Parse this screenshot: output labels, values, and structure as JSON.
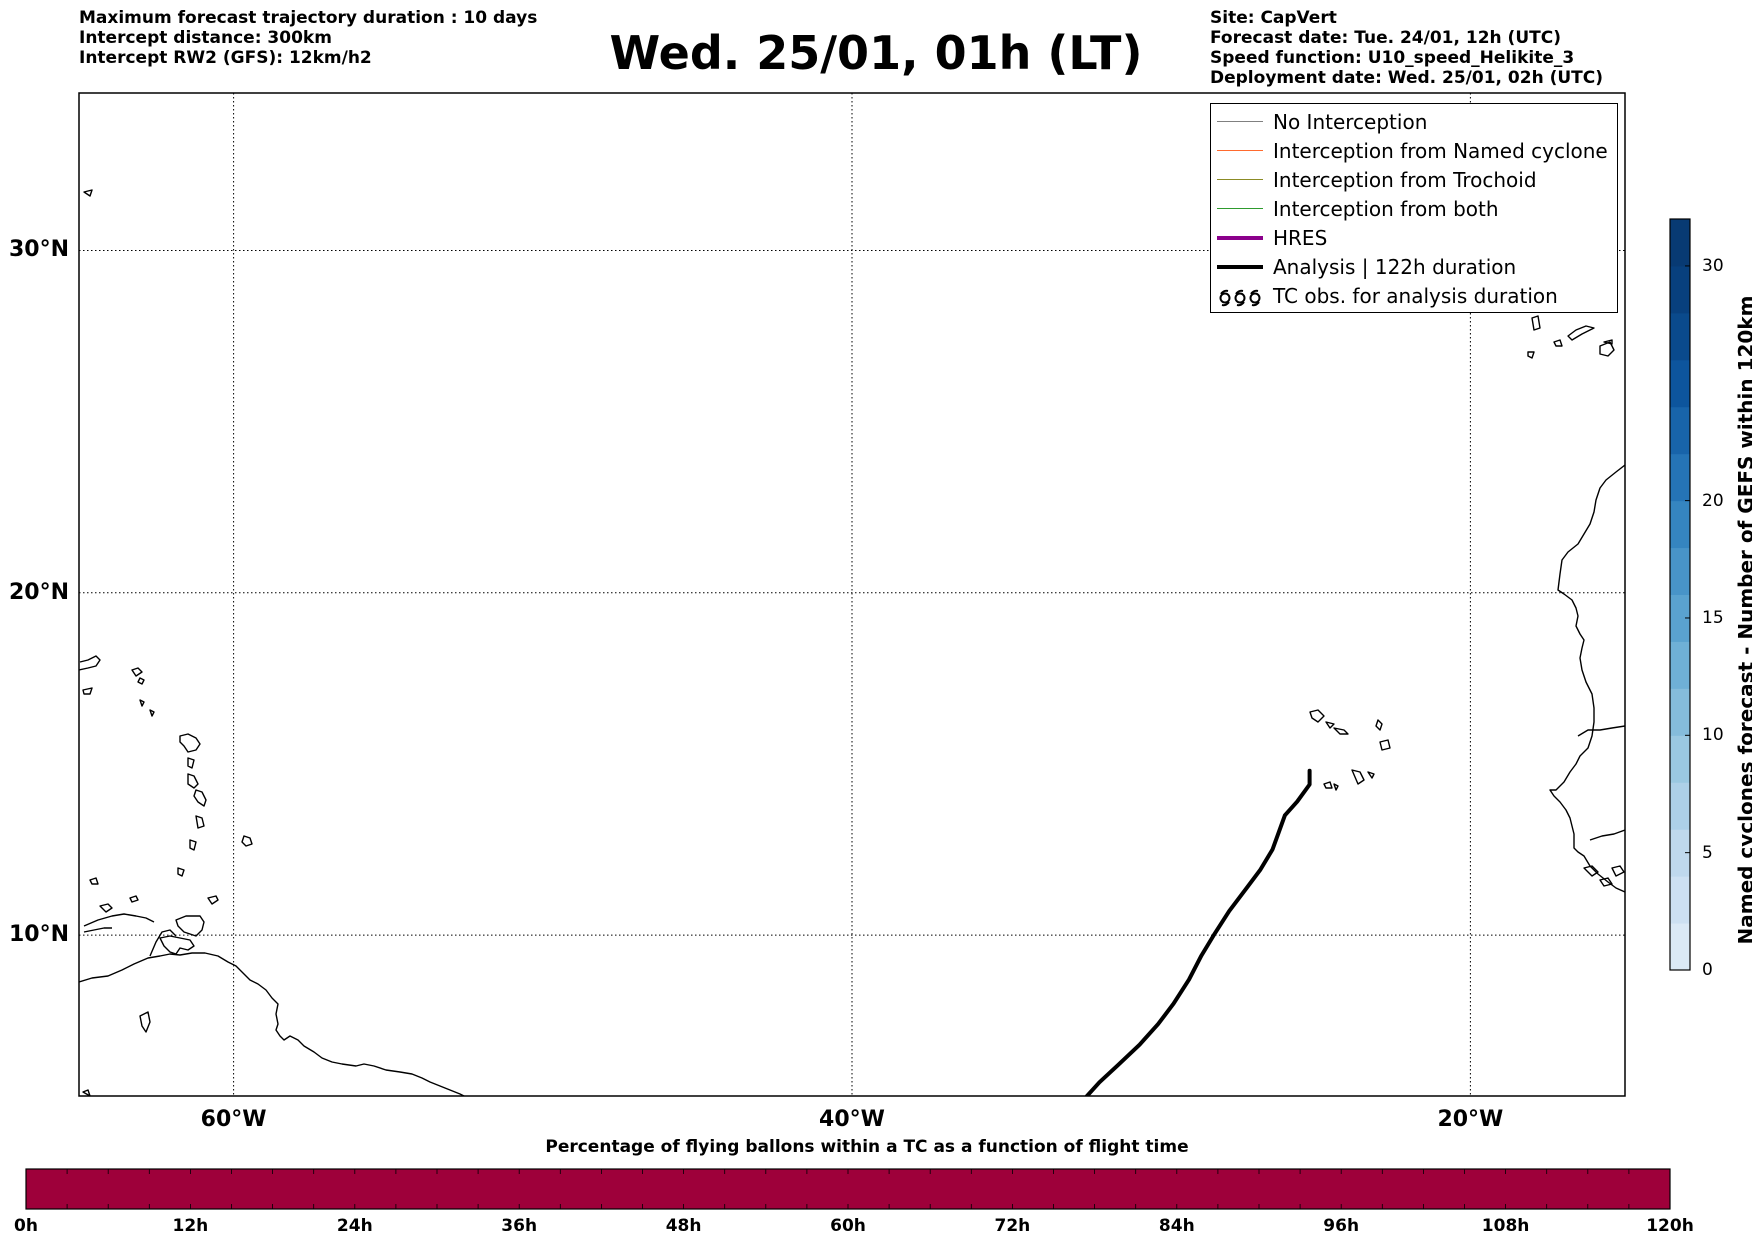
{
  "header": {
    "left_lines": [
      "Maximum forecast trajectory duration : 10 days",
      "Intercept distance: 300km",
      "Intercept RW2 (GFS):  12km/h2"
    ],
    "title": "Wed. 25/01, 01h (LT)",
    "right_lines": [
      "Site: CapVert",
      "Forecast date: Tue. 24/01, 12h (UTC)",
      "Speed function: U10_speed_Helikite_3",
      "Deployment date: Wed. 25/01, 02h (UTC)"
    ]
  },
  "map": {
    "lon_range": [
      -65,
      -15
    ],
    "lat_range": [
      5.3,
      34.6
    ],
    "lat_gridlines": [
      {
        "value": 30,
        "label": "30°N"
      },
      {
        "value": 20,
        "label": "20°N"
      },
      {
        "value": 10,
        "label": "10°N"
      }
    ],
    "lon_gridlines": [
      {
        "value": -60,
        "label": "60°W"
      },
      {
        "value": -40,
        "label": "40°W"
      },
      {
        "value": -20,
        "label": "20°W"
      }
    ],
    "analysis_track": [
      [
        -25.2,
        14.8
      ],
      [
        -25.2,
        14.4
      ],
      [
        -25.6,
        13.9
      ],
      [
        -26.0,
        13.5
      ],
      [
        -26.2,
        13.0
      ],
      [
        -26.4,
        12.5
      ],
      [
        -26.8,
        11.9
      ],
      [
        -27.3,
        11.3
      ],
      [
        -27.8,
        10.7
      ],
      [
        -28.3,
        10.0
      ],
      [
        -28.7,
        9.4
      ],
      [
        -29.1,
        8.7
      ],
      [
        -29.6,
        8.0
      ],
      [
        -30.1,
        7.4
      ],
      [
        -30.7,
        6.8
      ],
      [
        -31.4,
        6.2
      ],
      [
        -32.0,
        5.7
      ],
      [
        -32.4,
        5.3
      ]
    ],
    "coast_color": "#000000",
    "track_color": "#000000"
  },
  "legend": {
    "items": [
      {
        "label": "No Interception",
        "color": "#808080",
        "width": 1.2,
        "icon": "line"
      },
      {
        "label": "Interception from Named cyclone",
        "color": "#ff6a2e",
        "width": 1.4,
        "icon": "line"
      },
      {
        "label": "Interception from Trochoid",
        "color": "#8b8b25",
        "width": 1.4,
        "icon": "line"
      },
      {
        "label": "Interception from both",
        "color": "#2e9b2e",
        "width": 1.4,
        "icon": "line"
      },
      {
        "label": "HRES",
        "color": "#8b008b",
        "width": 4,
        "icon": "line"
      },
      {
        "label": "Analysis | 122h duration",
        "color": "#000000",
        "width": 4,
        "icon": "line"
      },
      {
        "label": "TC obs. for analysis duration",
        "color": "#000000",
        "width": 2,
        "icon": "tc-symbols-icon"
      }
    ]
  },
  "vertical_colorbar": {
    "label": "Named cyclones forecast - Number of GEFS within 120km",
    "min": 0,
    "max": 32,
    "ticks": [
      0,
      5,
      10,
      15,
      20,
      30
    ],
    "colors": [
      "#dbe9f6",
      "#cde0f2",
      "#bfd8ed",
      "#add0e8",
      "#9ac8e1",
      "#85bcdb",
      "#6fb0d6",
      "#5aa2cf",
      "#4894c8",
      "#3585c0",
      "#2574b6",
      "#1864aa",
      "#0d559d",
      "#0a4a8c",
      "#08407e",
      "#083a73"
    ]
  },
  "horizontal_colorbar": {
    "title": "Percentage of flying ballons within a TC as a function of flight time",
    "color": "#9e003a",
    "segments": 40,
    "tick_labels": [
      "0h",
      "12h",
      "24h",
      "36h",
      "48h",
      "60h",
      "72h",
      "84h",
      "96h",
      "108h",
      "120h"
    ]
  }
}
